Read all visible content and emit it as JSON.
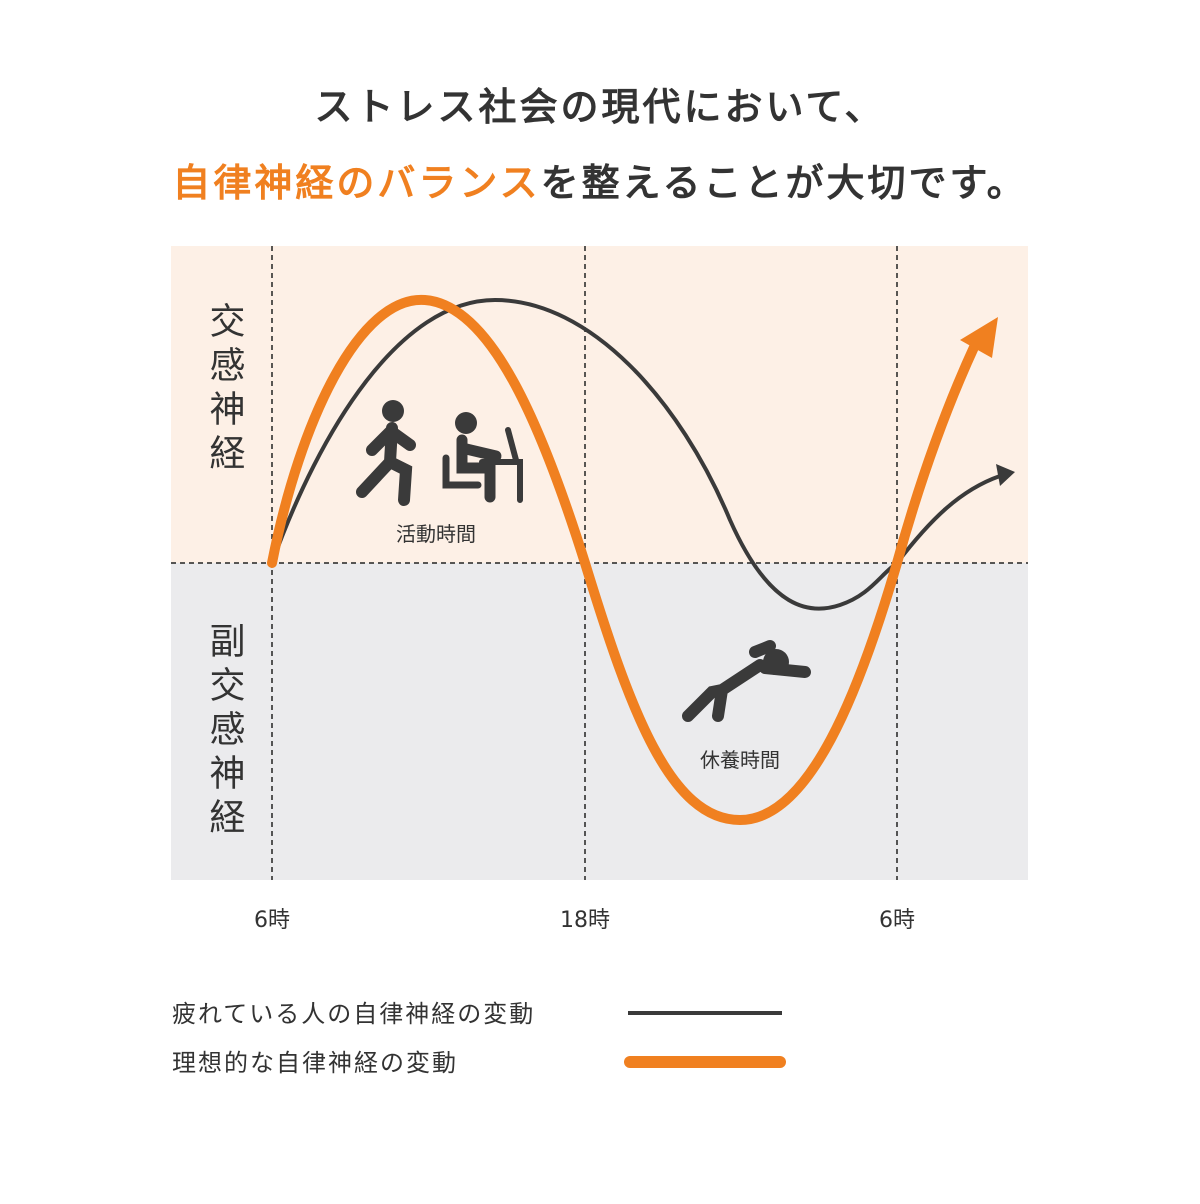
{
  "header": {
    "line1": "ストレス社会の現代において、",
    "line2_highlight": "自律神経のバランス",
    "line2_rest": "を整えることが大切です。"
  },
  "zones": {
    "upper": "交感神経",
    "lower": "副交感神経"
  },
  "annotations": {
    "activity": "活動時間",
    "rest": "休養時間"
  },
  "x_labels": [
    "6時",
    "18時",
    "6時"
  ],
  "legend": [
    "疲れている人の自律神経の変動",
    "理想的な自律神経の変動"
  ]
}
